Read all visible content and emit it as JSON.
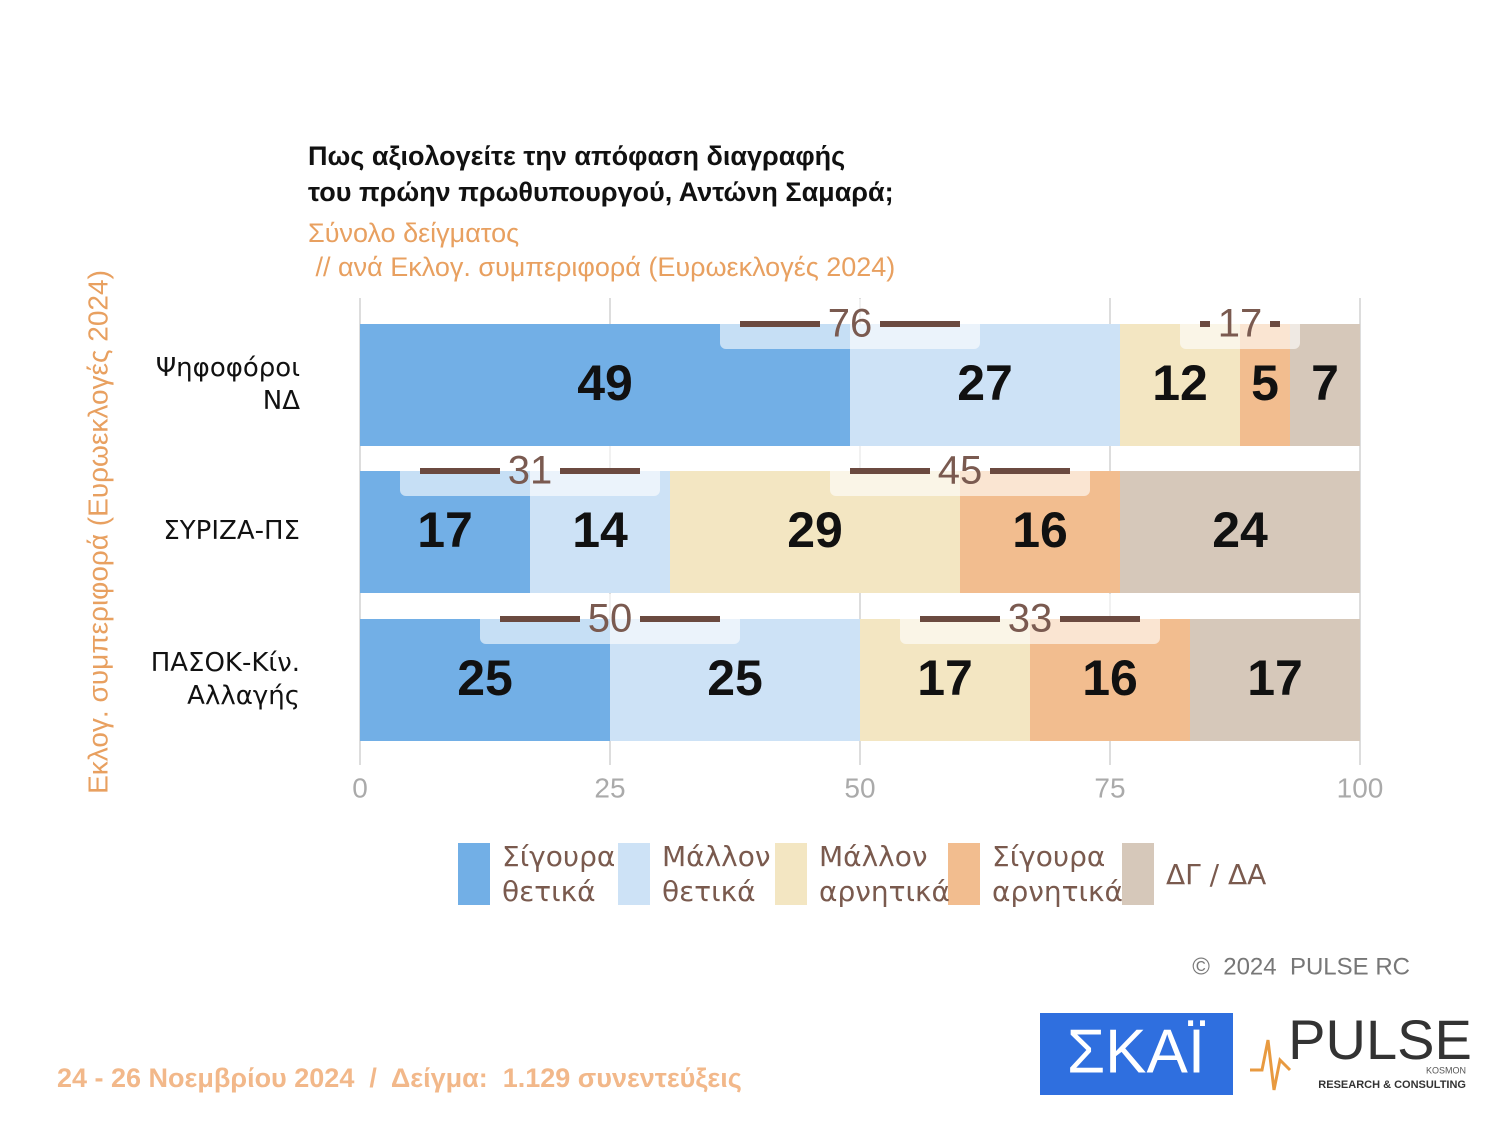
{
  "chart_data": {
    "type": "stacked_bar_horizontal",
    "title": [
      "Πως αξιολογείτε  την απόφαση διαγραφής",
      "του πρώην πρωθυπουργού, Αντώνη Σαμαρά;"
    ],
    "subtitle": [
      "Σύνολο δείγματος",
      " // ανά Εκλογ. συμπεριφορά (Ευρωεκλογές 2024)"
    ],
    "y_axis_label": "Εκλογ. συμπεριφορά (Ευρωεκλογές 2024)",
    "categories": [
      "Ψηφοφόροι ΝΔ",
      "ΣΥΡΙΖΑ-ΠΣ",
      "ΠΑΣΟΚ-Κίν. Αλλαγής"
    ],
    "series": [
      {
        "name": "Σίγουρα θετικά",
        "color": "#72afe6",
        "values": [
          49,
          17,
          25
        ]
      },
      {
        "name": "Μάλλον θετικά",
        "color": "#cde2f6",
        "values": [
          27,
          14,
          25
        ]
      },
      {
        "name": "Μάλλον αρνητικά",
        "color": "#f3e6c2",
        "values": [
          12,
          29,
          17
        ]
      },
      {
        "name": "Σίγουρα αρνητικά",
        "color": "#f2bd8f",
        "values": [
          5,
          16,
          16
        ]
      },
      {
        "name": "ΔΓ / ΔΑ",
        "color": "#d6c8ba",
        "values": [
          7,
          24,
          17
        ]
      }
    ],
    "positive_totals": [
      76,
      31,
      50
    ],
    "negative_totals": [
      17,
      45,
      33
    ],
    "xlim": [
      0,
      100
    ],
    "xticks": [
      0,
      25,
      50,
      75,
      100
    ],
    "grid": true
  },
  "footer": "24 - 26 Νοεμβρίου 2024  /  Δείγμα:  1.129 συνεντεύξεις",
  "copyright": "©  2024  PULSE RC",
  "logos": {
    "skai": "ΣΚΑΪ",
    "pulse": "PULSE",
    "pulse_tagline": "RESEARCH & CONSULTING",
    "pulse_small": "KOSMON"
  }
}
